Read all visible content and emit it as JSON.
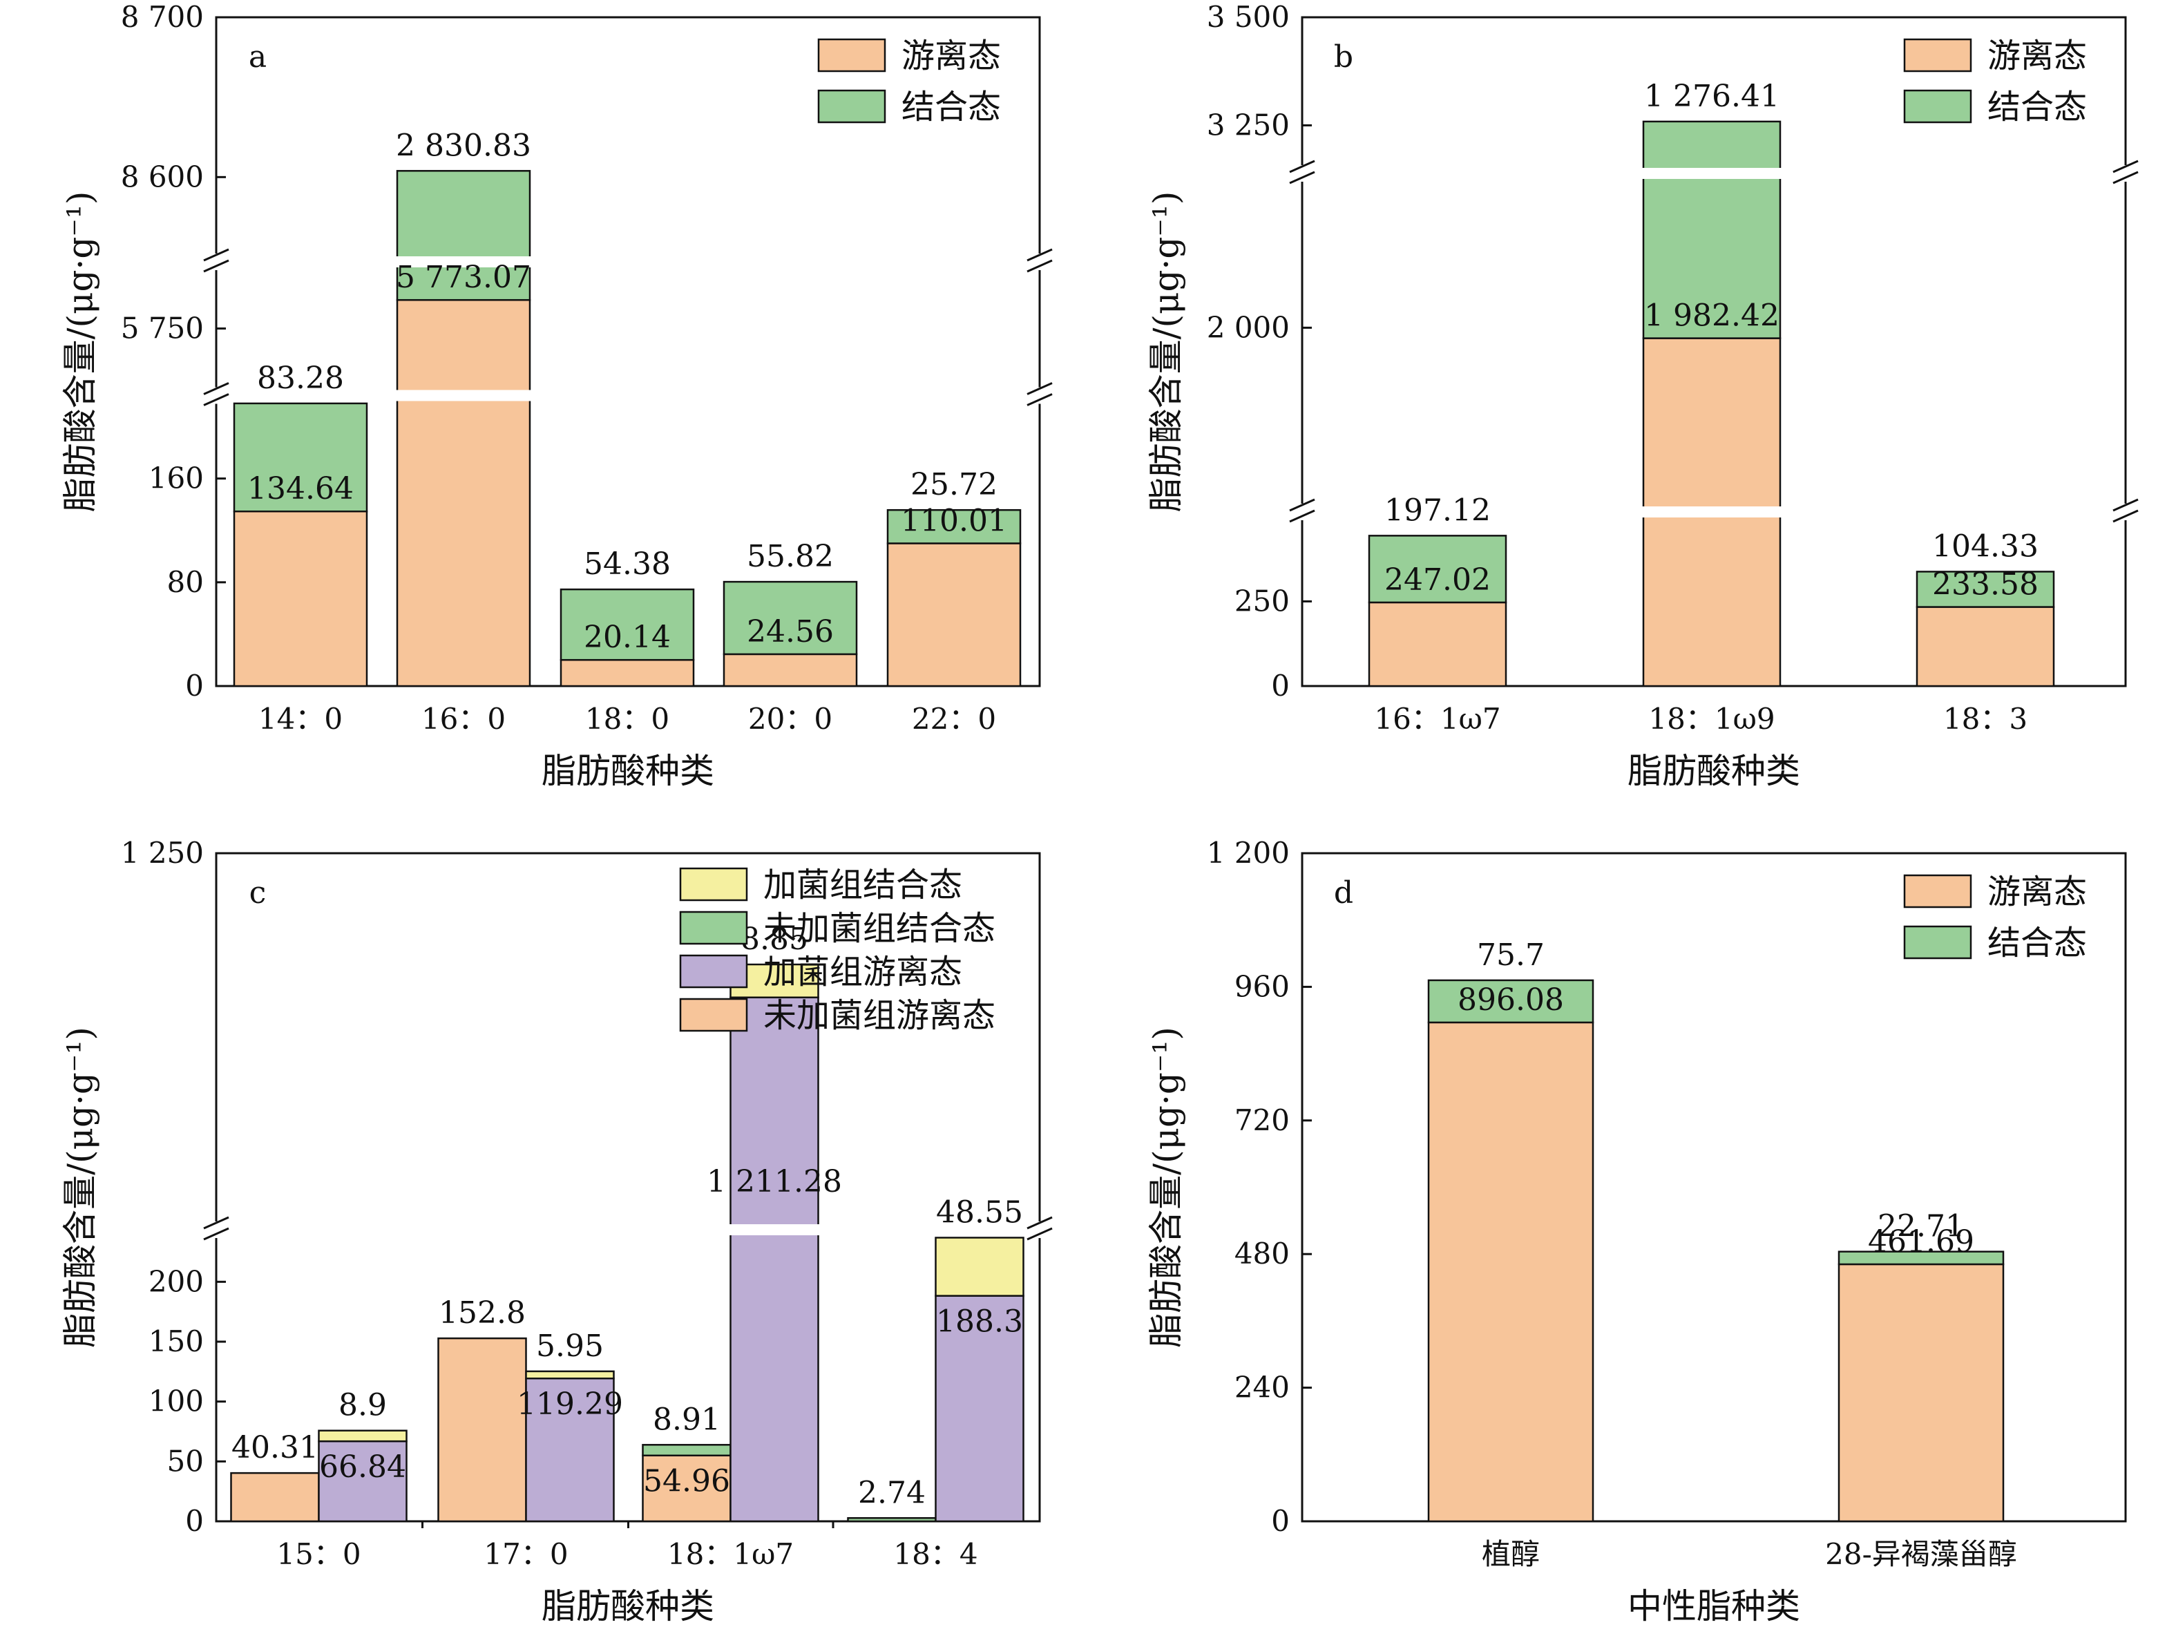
{
  "colors": {
    "free": "#f7c59a",
    "bound": "#98cf98",
    "purple": "#bcadd4",
    "yellow": "#f5f0a0",
    "axis": "#111111",
    "break_gap": "#ffffff"
  },
  "chart_data": [
    {
      "id": "a",
      "type": "bar",
      "stacked": true,
      "panel_letter": "a",
      "categories": [
        "14：0",
        "16：0",
        "18：0",
        "20：0",
        "22：0"
      ],
      "series": [
        {
          "name": "游离态",
          "color_key": "free",
          "values": [
            134.64,
            5773.07,
            20.14,
            24.56,
            110.01
          ]
        },
        {
          "name": "结合态",
          "color_key": "bound",
          "values": [
            83.28,
            2830.83,
            54.38,
            55.82,
            25.72
          ]
        }
      ],
      "bar_labels": [
        {
          "inner": "134.64",
          "top": "83.28"
        },
        {
          "inner": "5 773.07",
          "top": "2 830.83"
        },
        {
          "inner": "20.14",
          "top": "54.38"
        },
        {
          "inner": "24.56",
          "top": "55.82"
        },
        {
          "inner": "110.01",
          "top": "25.72"
        }
      ],
      "y_segments": [
        {
          "range": [
            0,
            220
          ],
          "ticks": [
            0,
            80,
            160
          ],
          "tick_labels": [
            "0",
            "80",
            "160"
          ]
        },
        {
          "range": [
            5700,
            5800
          ],
          "ticks": [
            5750
          ],
          "tick_labels": [
            "5 750"
          ]
        },
        {
          "range": [
            8550,
            8700
          ],
          "ticks": [
            8600,
            8700
          ],
          "tick_labels": [
            "8 600",
            "8 700"
          ]
        }
      ],
      "xlabel": "脂肪酸种类",
      "ylabel": "脂肪酸含量/(μg·g⁻¹)",
      "legend": [
        "游离态",
        "结合态"
      ],
      "legend_position": "top-right",
      "grid": false
    },
    {
      "id": "b",
      "type": "bar",
      "stacked": true,
      "panel_letter": "b",
      "categories": [
        "16：1ω7",
        "18：1ω9",
        "18：3"
      ],
      "series": [
        {
          "name": "游离态",
          "color_key": "free",
          "values": [
            247.02,
            1982.42,
            233.58
          ]
        },
        {
          "name": "结合态",
          "color_key": "bound",
          "values": [
            197.12,
            1276.41,
            104.33
          ]
        }
      ],
      "bar_labels": [
        {
          "inner": "247.02",
          "top": "197.12"
        },
        {
          "inner": "1 982.42",
          "top": "1 276.41"
        },
        {
          "inner": "233.58",
          "top": "104.33"
        }
      ],
      "y_segments": [
        {
          "range": [
            0,
            500
          ],
          "ticks": [
            0,
            250
          ],
          "tick_labels": [
            "0",
            "250"
          ]
        },
        {
          "range": [
            1700,
            2250
          ],
          "ticks": [
            2000
          ],
          "tick_labels": [
            "2 000"
          ]
        },
        {
          "range": [
            3150,
            3500
          ],
          "ticks": [
            3250,
            3500
          ],
          "tick_labels": [
            "3 250",
            "3 500"
          ]
        }
      ],
      "xlabel": "脂肪酸种类",
      "ylabel": "脂肪酸含量/(μg·g⁻¹)",
      "legend": [
        "游离态",
        "结合态"
      ],
      "legend_position": "top-right",
      "grid": false
    },
    {
      "id": "c",
      "type": "bar",
      "stacked": true,
      "grouped": true,
      "panel_letter": "c",
      "categories": [
        "15：0",
        "17：0",
        "18：1ω7",
        "18：4"
      ],
      "groups": [
        {
          "name": "未加菌组",
          "stack": [
            {
              "name": "未加菌组游离态",
              "color_key": "free",
              "values": [
                40.31,
                152.8,
                54.96,
                0
              ]
            },
            {
              "name": "未加菌组结合态",
              "color_key": "bound",
              "values": [
                0,
                0,
                8.91,
                2.74
              ]
            }
          ]
        },
        {
          "name": "加菌组",
          "stack": [
            {
              "name": "加菌组游离态",
              "color_key": "purple",
              "values": [
                66.84,
                119.29,
                1211.28,
                188.3
              ]
            },
            {
              "name": "加菌组结合态",
              "color_key": "yellow",
              "values": [
                8.9,
                5.95,
                8.85,
                48.55
              ]
            }
          ]
        }
      ],
      "bar_labels": [
        [
          {
            "inner": "",
            "top": "40.31"
          },
          {
            "inner": "66.84",
            "top": "8.9"
          }
        ],
        [
          {
            "inner": "",
            "top": "152.8"
          },
          {
            "inner": "119.29",
            "top": "5.95"
          }
        ],
        [
          {
            "inner": "54.96",
            "top": "8.91"
          },
          {
            "inner": "1 211.28",
            "top": "8.85"
          }
        ],
        [
          {
            "inner": "",
            "top": "2.74"
          },
          {
            "inner": "188.3",
            "top": "48.55"
          }
        ]
      ],
      "y_segments": [
        {
          "range": [
            0,
            240
          ],
          "ticks": [
            0,
            50,
            100,
            150,
            200
          ],
          "tick_labels": [
            "0",
            "50",
            "100",
            "150",
            "200"
          ]
        },
        {
          "range": [
            1150,
            1250
          ],
          "ticks": [
            1250
          ],
          "tick_labels": [
            "1 250"
          ]
        }
      ],
      "xlabel": "脂肪酸种类",
      "ylabel": "脂肪酸含量/(μg·g⁻¹)",
      "legend": [
        "加菌组结合态",
        "未加菌组结合态",
        "加菌组游离态",
        "未加菌组游离态"
      ],
      "legend_position": "top-right",
      "grid": false
    },
    {
      "id": "d",
      "type": "bar",
      "stacked": true,
      "panel_letter": "d",
      "categories": [
        "植醇",
        "28-异褐藻甾醇"
      ],
      "series": [
        {
          "name": "游离态",
          "color_key": "free",
          "values": [
            896.08,
            461.69
          ]
        },
        {
          "name": "结合态",
          "color_key": "bound",
          "values": [
            75.7,
            22.71
          ]
        }
      ],
      "bar_labels": [
        {
          "inner": "896.08",
          "top": "75.7"
        },
        {
          "inner": "461.69",
          "top": "22.71"
        }
      ],
      "y_segments": [
        {
          "range": [
            0,
            1200
          ],
          "ticks": [
            0,
            240,
            480,
            720,
            960,
            1200
          ],
          "tick_labels": [
            "0",
            "240",
            "480",
            "720",
            "960",
            "1 200"
          ]
        }
      ],
      "xlabel": "中性脂种类",
      "ylabel": "脂肪酸含量/(μg·g⁻¹)",
      "legend": [
        "游离态",
        "结合态"
      ],
      "legend_position": "top-right",
      "grid": false
    }
  ]
}
